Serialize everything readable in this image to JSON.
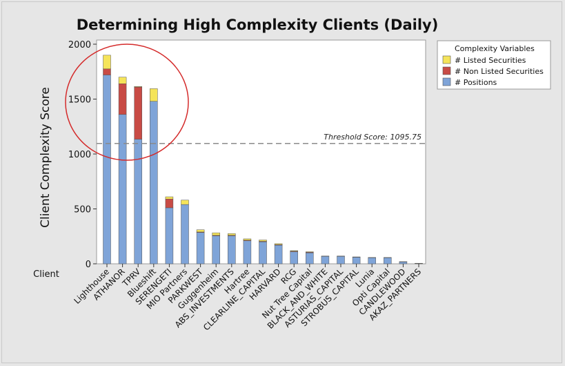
{
  "chart_data": {
    "type": "bar",
    "stacked": true,
    "title": "Determining High Complexity Clients (Daily)",
    "xlabel": "Client",
    "ylabel": "Client Complexity Score",
    "ylim": [
      0,
      2000
    ],
    "yticks": [
      0,
      500,
      1000,
      1500,
      2000
    ],
    "grid": false,
    "legend_title": "Complexity Variables",
    "legend_position": "top-right",
    "categories": [
      "Lighthouse",
      "ATHANOR",
      "TPRV",
      "Blueshift",
      "SERENGETI",
      "MIO Partners",
      "PARKWEST",
      "Guggenheim",
      "ABS_INVESTMENTS",
      "Hartree",
      "CLEARLINE_CAPITAL",
      "HARVARD",
      "RCG",
      "Nut Tree Capital",
      "BLACK_AND_WHITE",
      "ASTURIAS_CAPITAL",
      "STROBUS_CAPITAL",
      "Lunia",
      "Opti Capital",
      "CANDLEWOOD",
      "AKAZ_PARTNERS"
    ],
    "series": [
      {
        "name": "# Positions",
        "color": "#7fa4d8",
        "values": [
          1720,
          1360,
          1135,
          1480,
          510,
          540,
          285,
          255,
          255,
          210,
          200,
          170,
          110,
          100,
          68,
          68,
          60,
          55,
          55,
          18,
          4
        ]
      },
      {
        "name": "# Non Listed Securities",
        "color": "#c84b45",
        "values": [
          55,
          280,
          475,
          0,
          80,
          0,
          5,
          5,
          5,
          5,
          5,
          5,
          5,
          5,
          0,
          0,
          0,
          0,
          0,
          0,
          0
        ]
      },
      {
        "name": "# Listed Securities",
        "color": "#f5e45a",
        "values": [
          125,
          60,
          5,
          115,
          20,
          40,
          20,
          22,
          15,
          12,
          12,
          8,
          5,
          5,
          3,
          3,
          3,
          3,
          3,
          2,
          1
        ]
      }
    ],
    "threshold": {
      "value": 1095.75,
      "label": "Threshold Score: 1095.75"
    },
    "annotation": "red circle highlighting Lighthouse, ATHANOR, TPRV, Blueshift"
  }
}
